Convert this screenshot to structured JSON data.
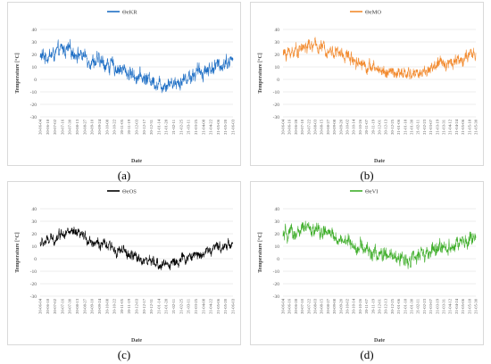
{
  "chart_data": [
    {
      "type": "line",
      "panel": "a",
      "caption": "(a)",
      "series": [
        {
          "name": "ΘeKR",
          "color": "#1f6fc5"
        }
      ],
      "xlabel": "Date",
      "ylabel": "Temperature [°C]",
      "ylim": [
        -30,
        40
      ],
      "yticks": [
        -30,
        -20,
        -10,
        0,
        10,
        20,
        30,
        40
      ],
      "xticks": [
        "20-06-04",
        "20-06-18",
        "20-07-02",
        "20-07-16",
        "20-07-30",
        "20-08-13",
        "20-08-27",
        "20-09-10",
        "20-09-24",
        "20-10-08",
        "20-10-22",
        "20-11-05",
        "20-11-19",
        "20-12-03",
        "20-12-17",
        "20-12-31",
        "21-01-14",
        "21-01-28",
        "21-02-11",
        "21-02-25",
        "21-03-11",
        "21-03-25",
        "21-04-08",
        "21-04-22",
        "21-05-06",
        "21-05-20",
        "21-06-03"
      ],
      "anchors": [
        [
          0,
          18
        ],
        [
          2,
          20
        ],
        [
          3,
          24
        ],
        [
          4,
          23
        ],
        [
          5,
          21
        ],
        [
          6,
          18
        ],
        [
          7,
          15
        ],
        [
          8,
          14
        ],
        [
          9,
          12
        ],
        [
          10,
          10
        ],
        [
          11,
          8
        ],
        [
          12,
          5
        ],
        [
          13,
          3
        ],
        [
          14,
          1
        ],
        [
          15,
          0
        ],
        [
          16,
          -4
        ],
        [
          17,
          -3
        ],
        [
          18,
          -2
        ],
        [
          19,
          -1
        ],
        [
          20,
          2
        ],
        [
          21,
          5
        ],
        [
          22,
          7
        ],
        [
          23,
          9
        ],
        [
          24,
          11
        ],
        [
          25,
          14
        ],
        [
          26,
          16
        ]
      ],
      "noise": 7
    },
    {
      "type": "line",
      "panel": "b",
      "caption": "(b)",
      "series": [
        {
          "name": "ΘeMO",
          "color": "#f28a2e"
        }
      ],
      "xlabel": "Date",
      "ylabel": "Temperature [°C]",
      "ylim": [
        -30,
        40
      ],
      "yticks": [
        -30,
        -20,
        -10,
        0,
        10,
        20,
        30,
        40
      ],
      "xticks": [
        "20-06-04",
        "20-06-16",
        "20-06-28",
        "20-07-10",
        "20-07-22",
        "20-08-03",
        "20-08-15",
        "20-08-27",
        "20-09-08",
        "20-09-20",
        "20-10-02",
        "20-10-14",
        "20-10-26",
        "20-11-07",
        "20-11-19",
        "20-12-01",
        "20-12-13",
        "20-12-25",
        "21-01-06",
        "21-01-18",
        "21-01-30",
        "21-02-11",
        "21-02-23",
        "21-03-07",
        "21-03-19",
        "21-03-31",
        "21-04-12",
        "21-04-24",
        "21-05-06",
        "21-05-18",
        "21-05-30"
      ],
      "anchors": [
        [
          0,
          20
        ],
        [
          2,
          24
        ],
        [
          3,
          26
        ],
        [
          4,
          27
        ],
        [
          5,
          26
        ],
        [
          6,
          24
        ],
        [
          7,
          22
        ],
        [
          8,
          20
        ],
        [
          9,
          18
        ],
        [
          10,
          15
        ],
        [
          11,
          12
        ],
        [
          12,
          9
        ],
        [
          13,
          8
        ],
        [
          14,
          6
        ],
        [
          15,
          5
        ],
        [
          16,
          4
        ],
        [
          17,
          4
        ],
        [
          18,
          5
        ],
        [
          19,
          6
        ],
        [
          20,
          9
        ],
        [
          21,
          12
        ],
        [
          22,
          13
        ],
        [
          23,
          15
        ],
        [
          24,
          16
        ],
        [
          25,
          18
        ],
        [
          26,
          20
        ]
      ],
      "noise": 6
    },
    {
      "type": "line",
      "panel": "c",
      "caption": "(c)",
      "series": [
        {
          "name": "ΘeOS",
          "color": "#000000"
        }
      ],
      "xlabel": "Date",
      "ylabel": "Temperature [°C]",
      "ylim": [
        -30,
        40
      ],
      "yticks": [
        -30,
        -20,
        -10,
        0,
        10,
        20,
        30,
        40
      ],
      "xticks": [
        "20-06-04",
        "20-06-18",
        "20-07-02",
        "20-07-16",
        "20-07-30",
        "20-08-13",
        "20-08-27",
        "20-09-10",
        "20-09-24",
        "20-10-08",
        "20-10-22",
        "20-11-05",
        "20-11-19",
        "20-12-03",
        "20-12-17",
        "20-12-31",
        "21-01-14",
        "21-01-28",
        "21-02-11",
        "21-02-25",
        "21-03-11",
        "21-03-25",
        "21-04-08",
        "21-04-22",
        "21-05-06",
        "21-05-20",
        "21-06-03"
      ],
      "anchors": [
        [
          0,
          12
        ],
        [
          2,
          16
        ],
        [
          3,
          22
        ],
        [
          4,
          21
        ],
        [
          5,
          19
        ],
        [
          6,
          17
        ],
        [
          7,
          14
        ],
        [
          8,
          12
        ],
        [
          9,
          10
        ],
        [
          10,
          8
        ],
        [
          11,
          6
        ],
        [
          12,
          3
        ],
        [
          13,
          1
        ],
        [
          14,
          -1
        ],
        [
          15,
          -3
        ],
        [
          16,
          -5
        ],
        [
          17,
          -4
        ],
        [
          18,
          -3
        ],
        [
          19,
          -1
        ],
        [
          20,
          1
        ],
        [
          21,
          3
        ],
        [
          22,
          5
        ],
        [
          23,
          7
        ],
        [
          24,
          9
        ],
        [
          25,
          11
        ],
        [
          26,
          13
        ]
      ],
      "noise": 5
    },
    {
      "type": "line",
      "panel": "d",
      "caption": "(d)",
      "series": [
        {
          "name": "ΘeVI",
          "color": "#3fae2a"
        }
      ],
      "xlabel": "Date",
      "ylabel": "Temperature [°C]",
      "ylim": [
        -30,
        40
      ],
      "yticks": [
        -30,
        -20,
        -10,
        0,
        10,
        20,
        30,
        40
      ],
      "xticks": [
        "20-06-04",
        "20-06-16",
        "20-06-28",
        "20-07-10",
        "20-07-22",
        "20-08-03",
        "20-08-15",
        "20-08-27",
        "20-09-08",
        "20-09-20",
        "20-10-02",
        "20-10-14",
        "20-10-26",
        "20-11-07",
        "20-11-19",
        "20-12-01",
        "20-12-13",
        "20-12-25",
        "21-01-06",
        "21-01-18",
        "21-01-30",
        "21-02-11",
        "21-02-23",
        "21-03-07",
        "21-03-19",
        "21-03-31",
        "21-04-12",
        "21-04-24",
        "21-05-06",
        "21-05-18",
        "21-05-30"
      ],
      "anchors": [
        [
          0,
          18
        ],
        [
          2,
          21
        ],
        [
          3,
          24
        ],
        [
          4,
          23
        ],
        [
          5,
          22
        ],
        [
          6,
          20
        ],
        [
          7,
          17
        ],
        [
          8,
          15
        ],
        [
          9,
          13
        ],
        [
          10,
          10
        ],
        [
          11,
          8
        ],
        [
          12,
          5
        ],
        [
          13,
          3
        ],
        [
          14,
          2
        ],
        [
          15,
          1
        ],
        [
          16,
          0
        ],
        [
          17,
          0
        ],
        [
          18,
          1
        ],
        [
          19,
          3
        ],
        [
          20,
          5
        ],
        [
          21,
          8
        ],
        [
          22,
          10
        ],
        [
          23,
          11
        ],
        [
          24,
          12
        ],
        [
          25,
          14
        ],
        [
          26,
          16
        ]
      ],
      "noise": 7
    }
  ]
}
